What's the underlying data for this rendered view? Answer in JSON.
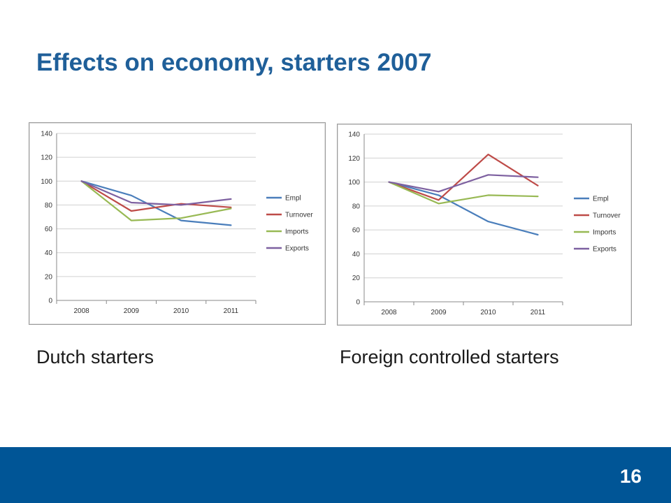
{
  "slide": {
    "title": "Effects on economy, starters 2007",
    "page_number": "16"
  },
  "captions": {
    "left": "Dutch starters",
    "right": "Foreign controlled starters"
  },
  "colors": {
    "title": "#1f5f99",
    "footer": "#005596",
    "Empl": "#4a7ebb",
    "Turnover": "#be4b48",
    "Imports": "#98b954",
    "Exports": "#7d60a0"
  },
  "chart_data": [
    {
      "type": "line",
      "title": "",
      "xlabel": "",
      "ylabel": "",
      "categories": [
        "2008",
        "2009",
        "2010",
        "2011"
      ],
      "ylim": [
        0,
        140
      ],
      "yticks": [
        0,
        20,
        40,
        60,
        80,
        100,
        120,
        140
      ],
      "grid": true,
      "legend": "right",
      "series": [
        {
          "name": "Empl",
          "values": [
            100,
            88,
            67,
            63
          ]
        },
        {
          "name": "Turnover",
          "values": [
            100,
            75,
            81,
            78
          ]
        },
        {
          "name": "Imports",
          "values": [
            100,
            67,
            69,
            77
          ]
        },
        {
          "name": "Exports",
          "values": [
            100,
            82,
            80,
            85
          ]
        }
      ]
    },
    {
      "type": "line",
      "title": "",
      "xlabel": "",
      "ylabel": "",
      "categories": [
        "2008",
        "2009",
        "2010",
        "2011"
      ],
      "ylim": [
        0,
        140
      ],
      "yticks": [
        0,
        20,
        40,
        60,
        80,
        100,
        120,
        140
      ],
      "grid": true,
      "legend": "right",
      "series": [
        {
          "name": "Empl",
          "values": [
            100,
            89,
            67,
            56
          ]
        },
        {
          "name": "Turnover",
          "values": [
            100,
            85,
            123,
            97
          ]
        },
        {
          "name": "Imports",
          "values": [
            100,
            82,
            89,
            88
          ]
        },
        {
          "name": "Exports",
          "values": [
            100,
            92,
            106,
            104
          ]
        }
      ]
    }
  ]
}
